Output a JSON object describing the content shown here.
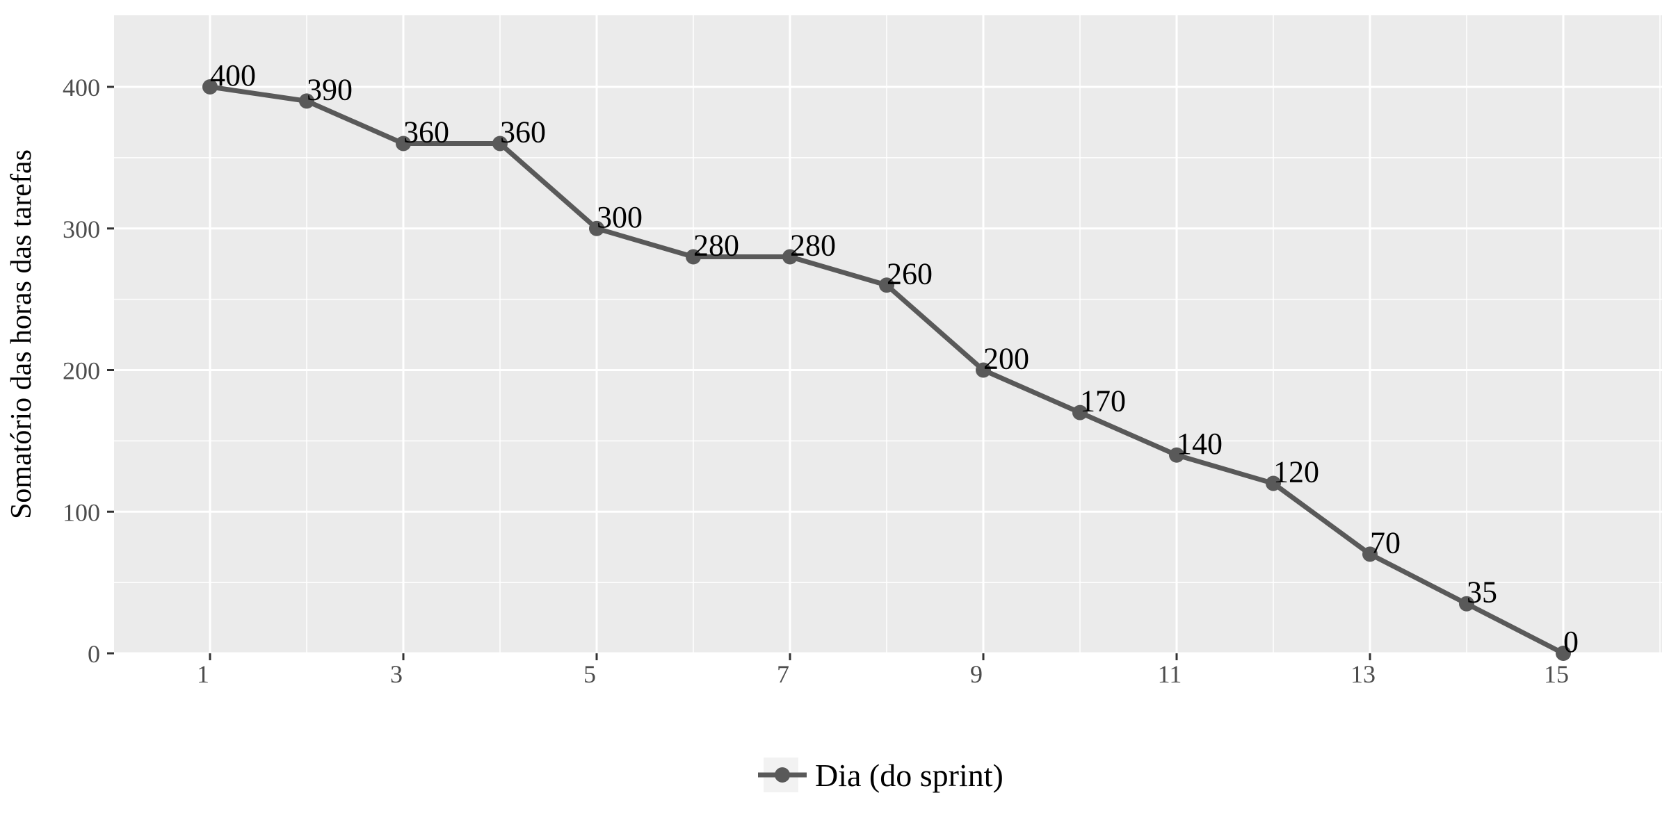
{
  "chart_data": {
    "type": "line",
    "title": "",
    "xlabel": "",
    "ylabel": "Somatório das horas das tarefas",
    "x": [
      1,
      2,
      3,
      4,
      5,
      6,
      7,
      8,
      9,
      10,
      11,
      12,
      13,
      14,
      15
    ],
    "x_ticks": [
      1,
      3,
      5,
      7,
      9,
      11,
      13,
      15
    ],
    "y_ticks": [
      0,
      100,
      200,
      300,
      400
    ],
    "xlim": [
      0,
      16
    ],
    "ylim": [
      0,
      400
    ],
    "grid": true,
    "legend_position": "bottom",
    "series": [
      {
        "name": "Dia (do sprint)",
        "color": "#595959",
        "values": [
          400,
          390,
          360,
          360,
          300,
          280,
          280,
          260,
          200,
          170,
          140,
          120,
          70,
          35,
          0
        ],
        "labels": [
          "400",
          "390",
          "360",
          "360",
          "300",
          "280",
          "280",
          "260",
          "200",
          "170",
          "140",
          "120",
          "70",
          "35",
          "0"
        ]
      }
    ],
    "panel_background": "#ebebeb",
    "grid_color": "#ffffff"
  }
}
